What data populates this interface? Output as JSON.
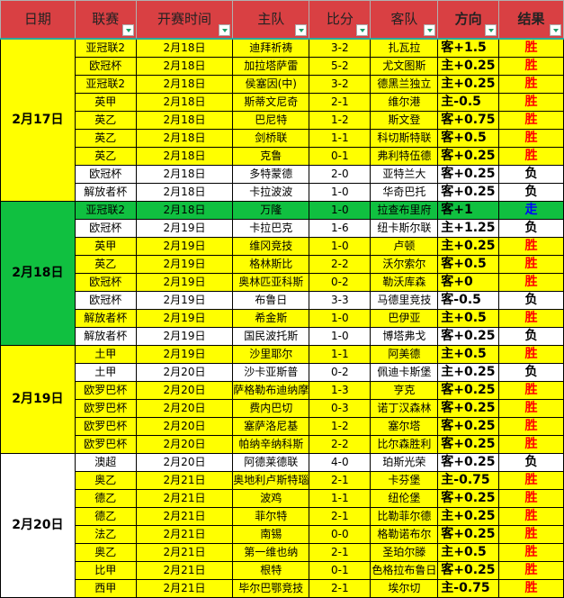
{
  "headers": [
    "日期",
    "联赛",
    "开赛时间",
    "主队",
    "比分",
    "客队",
    "方向",
    "结果"
  ],
  "groups": [
    {
      "date": "2月17日",
      "rows": [
        [
          "亚冠联2",
          "2月18日",
          "迪拜祈祷",
          "3-2",
          "扎瓦拉",
          "客+1.5",
          "胜"
        ],
        [
          "欧冠杯",
          "2月18日",
          "加拉塔萨雷",
          "5-2",
          "尤文图斯",
          "主+0.25",
          "胜"
        ],
        [
          "亚冠联2",
          "2月18日",
          "侯塞因(中)",
          "3-2",
          "德黑兰独立",
          "主+0.25",
          "胜"
        ],
        [
          "英甲",
          "2月18日",
          "斯蒂文尼奇",
          "2-1",
          "维尔港",
          "主-0.5",
          "胜"
        ],
        [
          "英乙",
          "2月18日",
          "巴尼特",
          "1-2",
          "斯文登",
          "客+0.75",
          "胜"
        ],
        [
          "英乙",
          "2月18日",
          "剑桥联",
          "1-1",
          "科切斯特联",
          "客+0.5",
          "胜"
        ],
        [
          "英乙",
          "2月18日",
          "克鲁",
          "0-1",
          "弗利特伍德",
          "客+0.25",
          "胜"
        ],
        [
          "欧冠杯",
          "2月18日",
          "多特蒙德",
          "2-0",
          "亚特兰大",
          "客+0.25",
          "负"
        ],
        [
          "解放者杯",
          "2月18日",
          "卡拉波波",
          "1-0",
          "华奇巴托",
          "客+0.25",
          "负"
        ]
      ]
    },
    {
      "date": "2月18日",
      "rows": [
        [
          "亚冠联2",
          "2月18日",
          "万隆",
          "1-0",
          "拉查布里府",
          "客+1",
          "走"
        ],
        [
          "欧冠杯",
          "2月19日",
          "卡拉巴克",
          "1-6",
          "纽卡斯尔联",
          "主+1.25",
          "负"
        ],
        [
          "英甲",
          "2月19日",
          "维冈竞技",
          "1-0",
          "卢顿",
          "主+0.25",
          "胜"
        ],
        [
          "英乙",
          "2月19日",
          "格林斯比",
          "2-2",
          "沃尔索尔",
          "客+0.5",
          "胜"
        ],
        [
          "欧冠杯",
          "2月19日",
          "奥林匹亚科斯",
          "0-2",
          "勒沃库森",
          "客+0",
          "胜"
        ],
        [
          "欧冠杯",
          "2月19日",
          "布鲁日",
          "3-3",
          "马德里竞技",
          "客-0.5",
          "负"
        ],
        [
          "解放者杯",
          "2月19日",
          "希金斯",
          "1-0",
          "巴伊亚",
          "主+0.5",
          "胜"
        ],
        [
          "解放者杯",
          "2月19日",
          "国民波托斯",
          "1-0",
          "博塔弗戈",
          "客+0.25",
          "负"
        ]
      ]
    },
    {
      "date": "2月19日",
      "rows": [
        [
          "土甲",
          "2月19日",
          "沙里耶尔",
          "1-1",
          "阿美德",
          "主+0.5",
          "胜"
        ],
        [
          "土甲",
          "2月20日",
          "沙卡亚斯普",
          "0-2",
          "佩迪卡斯堡",
          "主+0.25",
          "负"
        ],
        [
          "欧罗巴杯",
          "2月20日",
          "萨格勒布迪纳摩",
          "1-3",
          "亨克",
          "客+0.25",
          "胜"
        ],
        [
          "欧罗巴杯",
          "2月20日",
          "费内巴切",
          "0-3",
          "诺丁汉森林",
          "客+0.25",
          "胜"
        ],
        [
          "欧罗巴杯",
          "2月20日",
          "塞萨洛尼基",
          "1-2",
          "塞尔塔",
          "客+0.25",
          "胜"
        ],
        [
          "欧罗巴杯",
          "2月20日",
          "帕纳辛纳科斯",
          "2-2",
          "比尔森胜利",
          "客+0.25",
          "胜"
        ]
      ]
    },
    {
      "date": "2月20日",
      "rows": [
        [
          "澳超",
          "2月20日",
          "阿德莱德联",
          "4-0",
          "珀斯光荣",
          "客+0.25",
          "负"
        ],
        [
          "奥乙",
          "2月21日",
          "奥地利卢斯特瑙",
          "2-1",
          "卡芬堡",
          "主-0.75",
          "胜"
        ],
        [
          "德乙",
          "2月21日",
          "波鸡",
          "1-1",
          "纽伦堡",
          "客+0.25",
          "胜"
        ],
        [
          "德乙",
          "2月21日",
          "菲尔特",
          "2-1",
          "比勒菲尔德",
          "主+0.25",
          "胜"
        ],
        [
          "法乙",
          "2月21日",
          "南锡",
          "0-0",
          "格勒诺布尔",
          "客+0.25",
          "胜"
        ],
        [
          "奥乙",
          "2月21日",
          "第一维也纳",
          "2-1",
          "圣珀尔滕",
          "主+0.5",
          "胜"
        ],
        [
          "比甲",
          "2月21日",
          "根特",
          "0-1",
          "色格拉布鲁日",
          "客+0.25",
          "胜"
        ],
        [
          "西甲",
          "2月21日",
          "毕尔巴鄂竞技",
          "2-1",
          "埃尔切",
          "主-0.75",
          "胜"
        ]
      ]
    }
  ],
  "colors": {
    "header": "#d94043",
    "win_row": "#ffff00",
    "draw_row": "#10c040",
    "win_text": "#ff0000",
    "draw_text": "#0000ff"
  }
}
